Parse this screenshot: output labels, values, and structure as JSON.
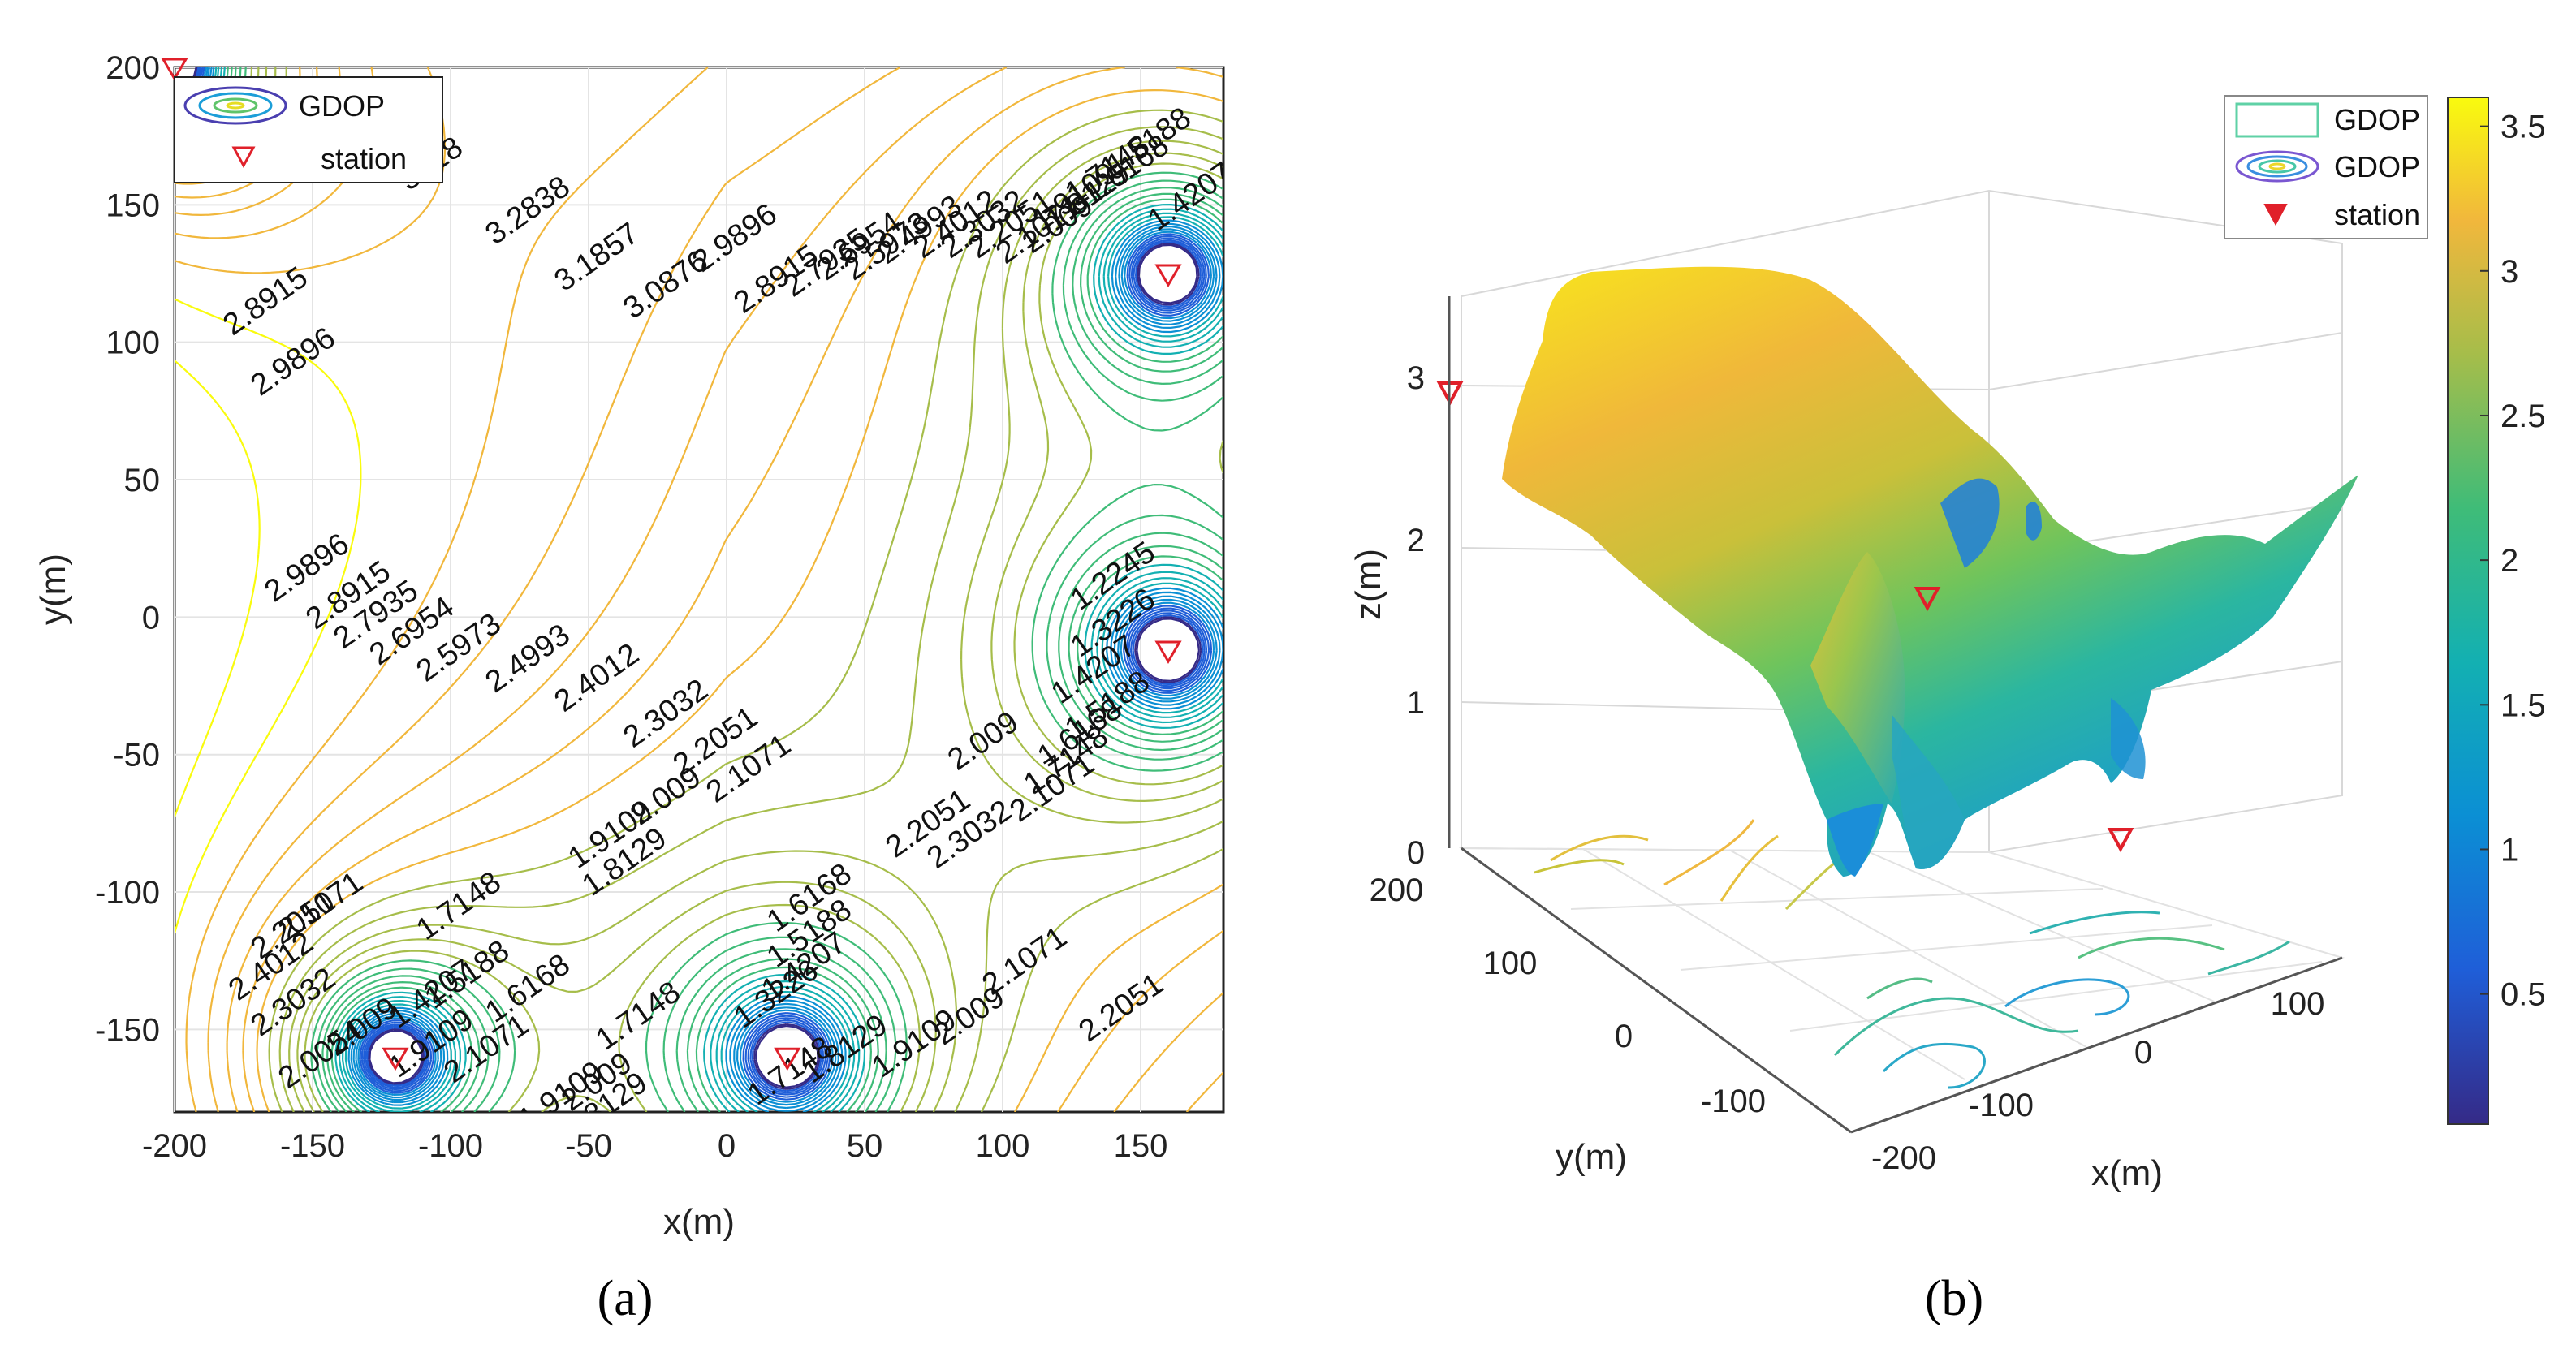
{
  "chart_data": [
    {
      "type": "contour",
      "panel_label": "(a)",
      "xlabel": "x(m)",
      "ylabel": "y(m)",
      "xlim": [
        -200,
        180
      ],
      "ylim": [
        -180,
        200
      ],
      "xticks": [
        "-200",
        "-150",
        "-100",
        "-50",
        "0",
        "50",
        "100",
        "150"
      ],
      "yticks": [
        "200",
        "150",
        "100",
        "50",
        "0",
        "-50",
        "-100",
        "-150"
      ],
      "grid": true,
      "legend": {
        "position": "top-left",
        "entries": [
          "GDOP",
          "station"
        ]
      },
      "stations": [
        {
          "x": -200,
          "y": 200
        },
        {
          "x": 160,
          "y": 125
        },
        {
          "x": 160,
          "y": -12
        },
        {
          "x": -120,
          "y": -160
        },
        {
          "x": 22,
          "y": -160
        }
      ],
      "contour_labels": [
        {
          "text": "3818",
          "x": -105,
          "y": 162
        },
        {
          "text": "3.2838",
          "x": -70,
          "y": 145
        },
        {
          "text": "3.1857",
          "x": -45,
          "y": 128
        },
        {
          "text": "3.0876",
          "x": -20,
          "y": 118
        },
        {
          "text": "2.9896",
          "x": 5,
          "y": 135
        },
        {
          "text": "2.8915",
          "x": -165,
          "y": 112
        },
        {
          "text": "2.9896",
          "x": -155,
          "y": 90
        },
        {
          "text": "2.9896",
          "x": -150,
          "y": 15
        },
        {
          "text": "2.8915",
          "x": -135,
          "y": 5
        },
        {
          "text": "2.7935",
          "x": -125,
          "y": -2
        },
        {
          "text": "2.6954",
          "x": -112,
          "y": -8
        },
        {
          "text": "2.5973",
          "x": -95,
          "y": -14
        },
        {
          "text": "2.4993",
          "x": -70,
          "y": -18
        },
        {
          "text": "2.4012",
          "x": -45,
          "y": -25
        },
        {
          "text": "2.3032",
          "x": -20,
          "y": -38
        },
        {
          "text": "2.2051",
          "x": -2,
          "y": -48
        },
        {
          "text": "2.1071",
          "x": 10,
          "y": -58
        },
        {
          "text": "2.009",
          "x": -20,
          "y": -68
        },
        {
          "text": "1.9109",
          "x": -40,
          "y": -82
        },
        {
          "text": "1.8129",
          "x": -35,
          "y": -92
        },
        {
          "text": "1.7148",
          "x": -95,
          "y": -108
        },
        {
          "text": "1.6168",
          "x": -70,
          "y": -138
        },
        {
          "text": "1.5188",
          "x": -92,
          "y": -133
        },
        {
          "text": "1.4207",
          "x": -105,
          "y": -140
        },
        {
          "text": "1.6168",
          "x": 32,
          "y": -105
        },
        {
          "text": "1.5188",
          "x": 32,
          "y": -118
        },
        {
          "text": "1.4207",
          "x": 30,
          "y": -130
        },
        {
          "text": "1.3226",
          "x": 20,
          "y": -140
        },
        {
          "text": "1.7148",
          "x": -30,
          "y": -148
        },
        {
          "text": "2.1071",
          "x": -85,
          "y": -160
        },
        {
          "text": "2.009",
          "x": -45,
          "y": -172
        },
        {
          "text": "1.9109",
          "x": -58,
          "y": -177
        },
        {
          "text": "1.8129",
          "x": -42,
          "y": -181
        },
        {
          "text": "1.9109",
          "x": 70,
          "y": -158
        },
        {
          "text": "1.8129",
          "x": 45,
          "y": -160
        },
        {
          "text": "1.7148",
          "x": 25,
          "y": -168
        },
        {
          "text": "2.009",
          "x": 90,
          "y": -148
        },
        {
          "text": "2.1071",
          "x": 110,
          "y": -128
        },
        {
          "text": "2.2051",
          "x": 145,
          "y": -145
        },
        {
          "text": "2.2051",
          "x": 75,
          "y": -78
        },
        {
          "text": "2.3032",
          "x": 90,
          "y": -82
        },
        {
          "text": "2.1071",
          "x": 120,
          "y": -65
        },
        {
          "text": "2.009",
          "x": 95,
          "y": -48
        },
        {
          "text": "1.2245",
          "x": 142,
          "y": 12
        },
        {
          "text": "1.3226",
          "x": 142,
          "y": -5
        },
        {
          "text": "1.4207",
          "x": 135,
          "y": -22
        },
        {
          "text": "1.5188",
          "x": 140,
          "y": -35
        },
        {
          "text": "1.6168",
          "x": 130,
          "y": -45
        },
        {
          "text": "1.7148",
          "x": 125,
          "y": -55
        },
        {
          "text": "2.8915",
          "x": 20,
          "y": 120
        },
        {
          "text": "2.7935",
          "x": 38,
          "y": 126
        },
        {
          "text": "2.6954",
          "x": 50,
          "y": 132
        },
        {
          "text": "2.5973",
          "x": 60,
          "y": 132
        },
        {
          "text": "2.4993",
          "x": 72,
          "y": 138
        },
        {
          "text": "2.4012",
          "x": 85,
          "y": 140
        },
        {
          "text": "2.3032",
          "x": 95,
          "y": 140
        },
        {
          "text": "2.2051",
          "x": 105,
          "y": 140
        },
        {
          "text": "2.1071",
          "x": 115,
          "y": 138
        },
        {
          "text": "2.009",
          "x": 122,
          "y": 140
        },
        {
          "text": "1.9109",
          "x": 128,
          "y": 150
        },
        {
          "text": "1.8129",
          "x": 133,
          "y": 150
        },
        {
          "text": "1.7148",
          "x": 140,
          "y": 160
        },
        {
          "text": "1.6168",
          "x": 147,
          "y": 160
        },
        {
          "text": "1.5188",
          "x": 155,
          "y": 170
        },
        {
          "text": "1.4207",
          "x": 170,
          "y": 150
        },
        {
          "text": "2.4012",
          "x": -163,
          "y": -130
        },
        {
          "text": "2.3032",
          "x": -155,
          "y": -143
        },
        {
          "text": "2.2051",
          "x": -155,
          "y": -115
        },
        {
          "text": "2.1071",
          "x": -145,
          "y": -108
        },
        {
          "text": "2.009",
          "x": -130,
          "y": -152
        },
        {
          "text": "1.9109",
          "x": -105,
          "y": -158
        },
        {
          "text": "2.0054",
          "x": -145,
          "y": -162
        }
      ]
    },
    {
      "type": "surface",
      "panel_label": "(b)",
      "xlabel": "x(m)",
      "ylabel": "y(m)",
      "zlabel": "z(m)",
      "xticks": [
        "-200",
        "-100",
        "0",
        "100"
      ],
      "yticks": [
        "200",
        "100",
        "0",
        "-100"
      ],
      "zticks": [
        "3",
        "2",
        "1",
        "0"
      ],
      "colorbar": {
        "min": 0.05,
        "max": 3.6,
        "ticks": [
          "3.5",
          "3",
          "2.5",
          "2",
          "1.5",
          "1",
          "0.5"
        ]
      },
      "legend": {
        "position": "top-right",
        "entries": [
          "GDOP",
          "GDOP",
          "station"
        ]
      },
      "stations": [
        {
          "label_pos": "top-left z axis"
        },
        {
          "label_pos": "surface middle"
        },
        {
          "label_pos": "floor right"
        }
      ]
    }
  ]
}
